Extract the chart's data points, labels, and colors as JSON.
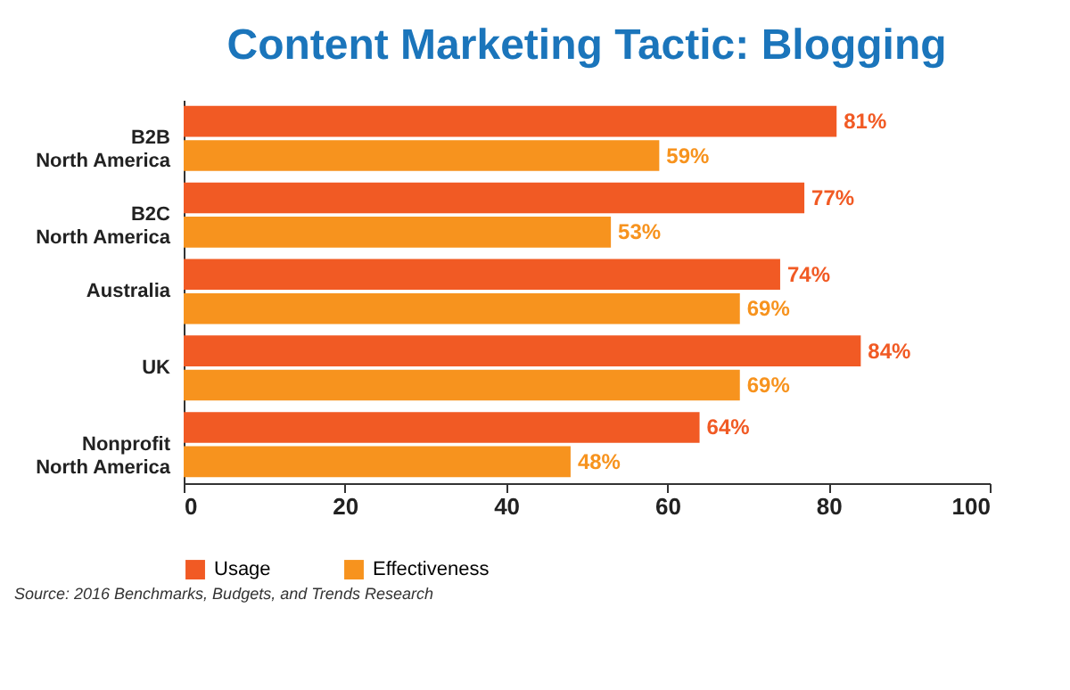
{
  "chart_data": {
    "type": "bar",
    "orientation": "horizontal",
    "title": "Content Marketing Tactic: Blogging",
    "categories": [
      "B2B\nNorth America",
      "B2C\nNorth America",
      "Australia",
      "UK",
      "Nonprofit\nNorth America"
    ],
    "series": [
      {
        "name": "Usage",
        "color": "#f15a24",
        "values": [
          81,
          77,
          74,
          84,
          64
        ],
        "value_labels": [
          "81%",
          "77%",
          "74%",
          "84%",
          "64%"
        ]
      },
      {
        "name": "Effectiveness",
        "color": "#f7931e",
        "values": [
          59,
          53,
          69,
          69,
          48
        ],
        "value_labels": [
          "59%",
          "53%",
          "69%",
          "69%",
          "48%"
        ]
      }
    ],
    "xlim": [
      0,
      100
    ],
    "xticks": [
      0,
      20,
      40,
      60,
      80,
      100
    ],
    "grid": false,
    "legend": "bottom",
    "annotations": [
      "Source: 2016 Benchmarks, Budgets, and Trends Research"
    ]
  }
}
